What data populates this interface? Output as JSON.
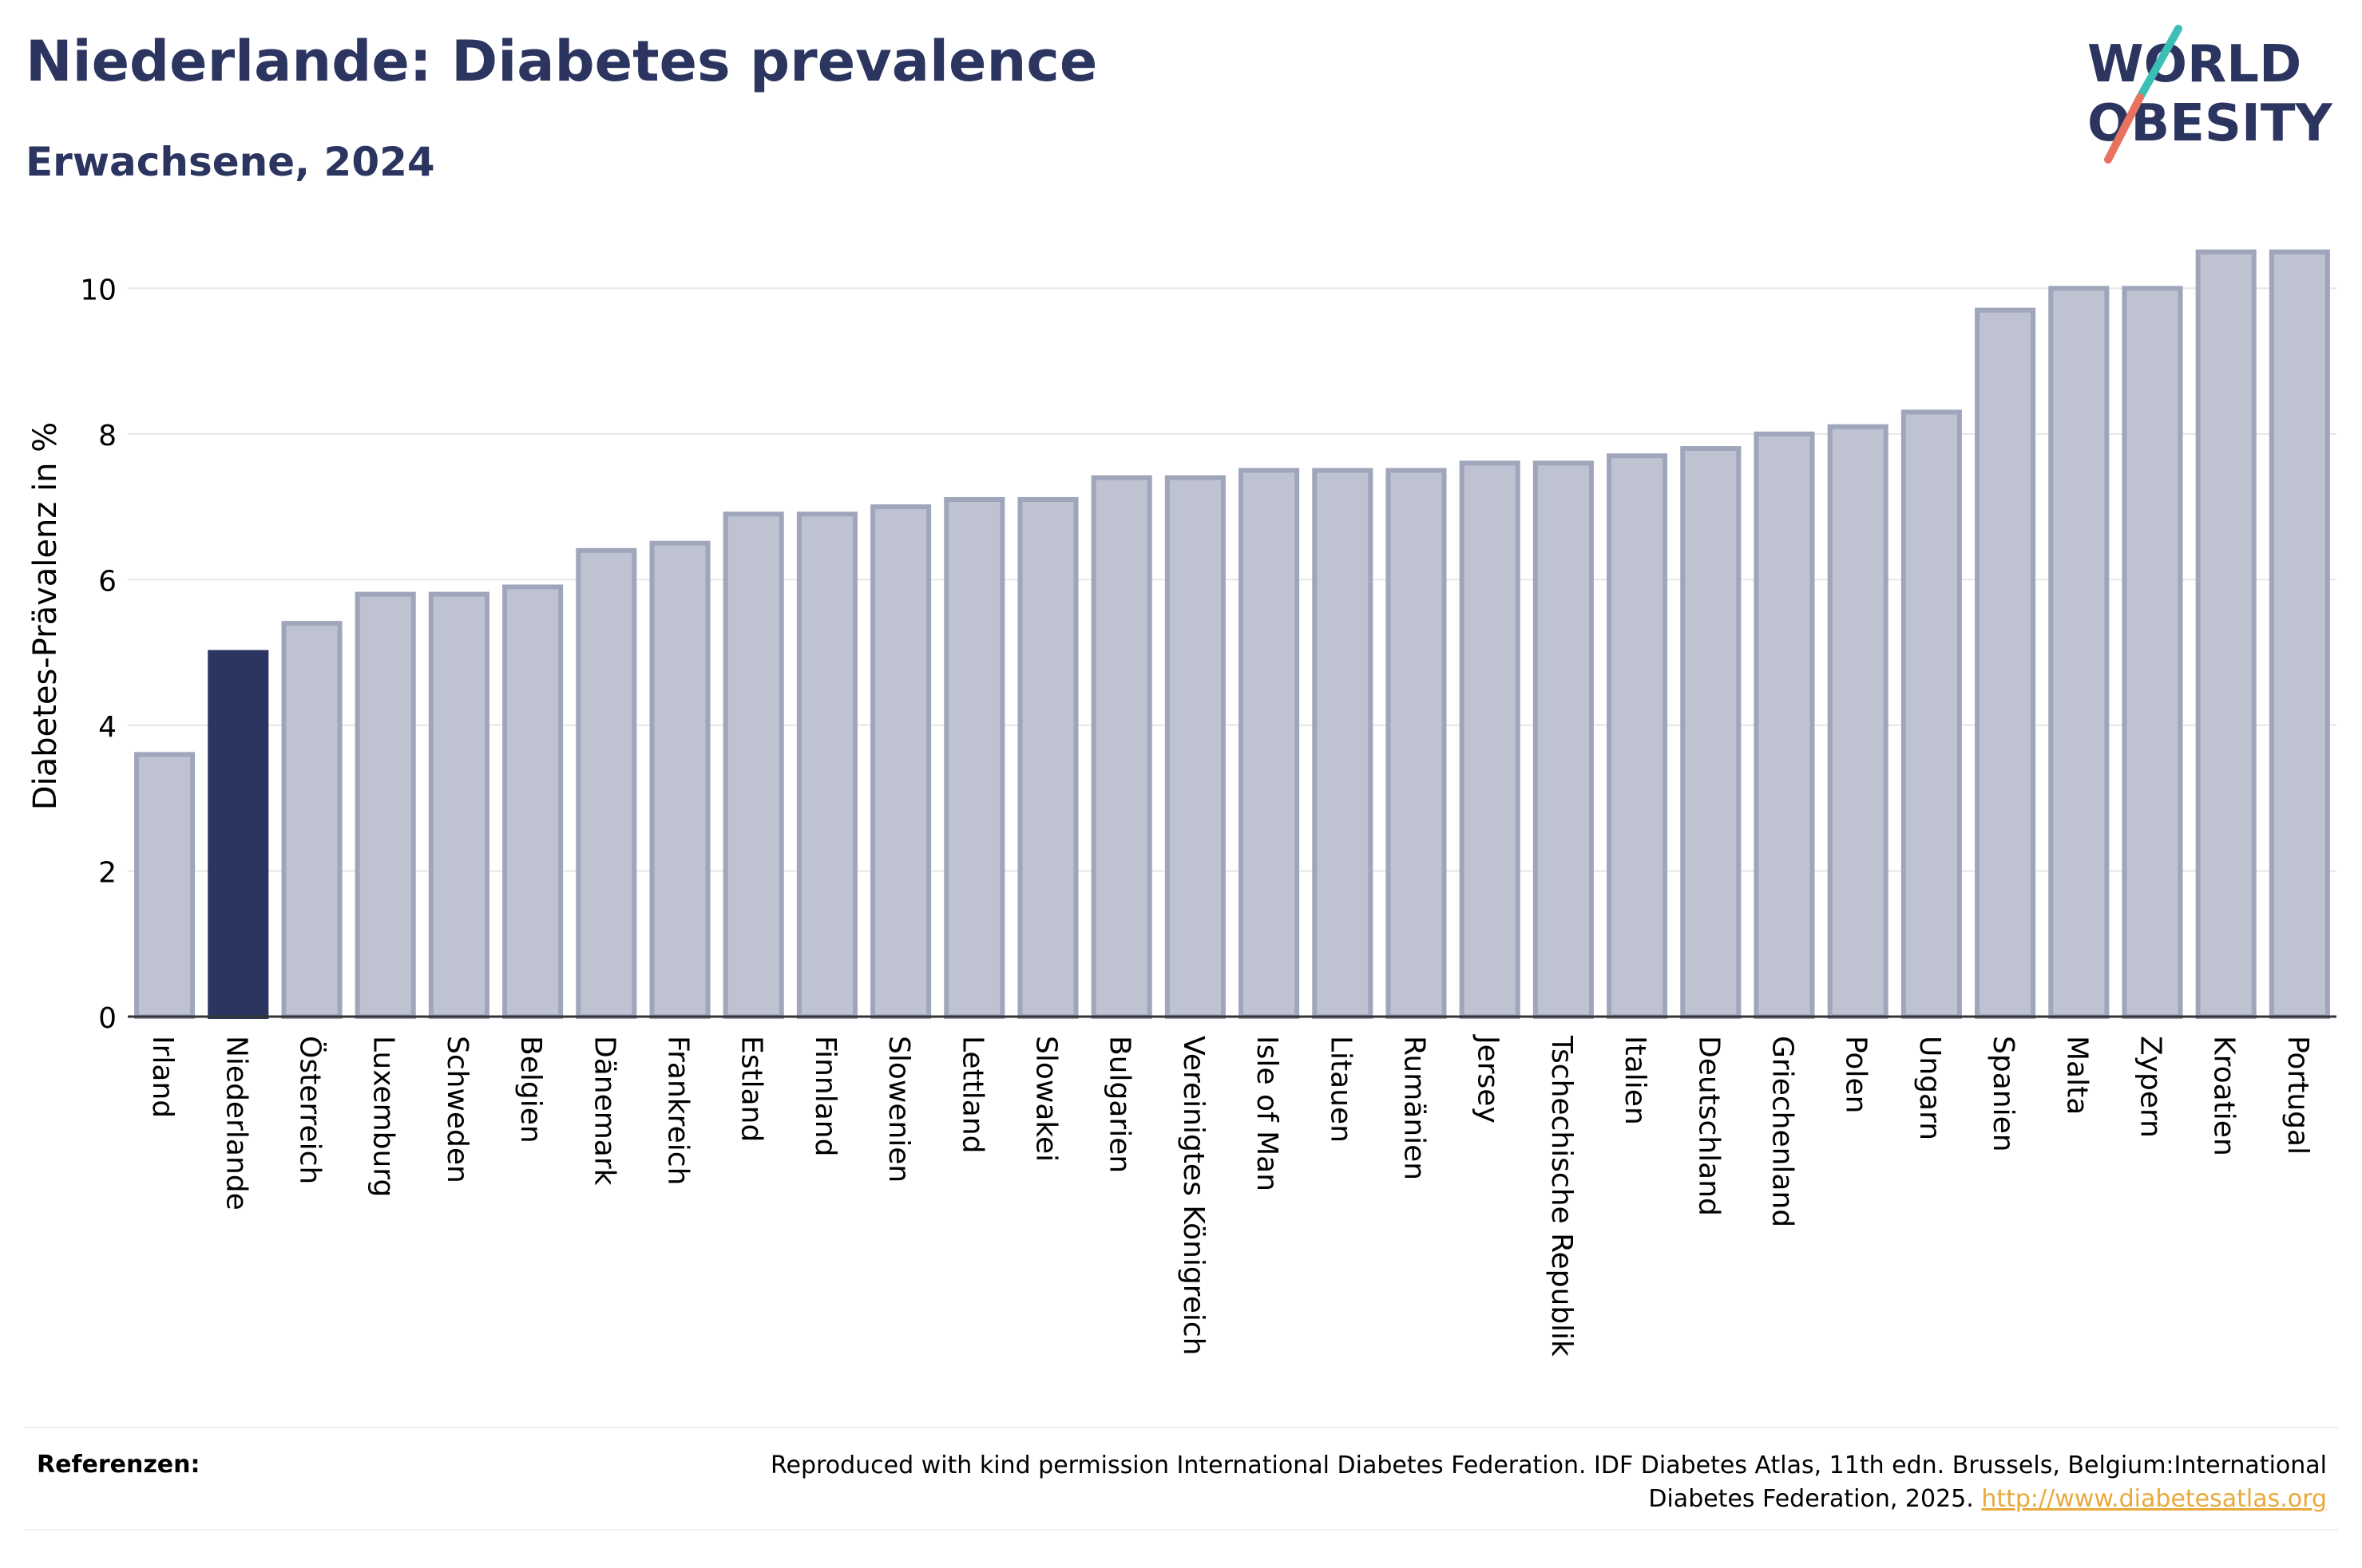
{
  "header": {
    "title": "Niederlande: Diabetes prevalence",
    "subtitle": "Erwachsene, 2024"
  },
  "logo": {
    "line1": "WORLD",
    "line2": "OBESITY",
    "colors": {
      "text": "#2b3560",
      "slash_teal": "#3bbfb5",
      "slash_coral": "#e8735f"
    }
  },
  "chart_data": {
    "type": "bar",
    "title": "Niederlande: Diabetes prevalence",
    "subtitle": "Erwachsene, 2024",
    "xlabel": "",
    "ylabel": "Diabetes-Prävalenz in %",
    "ylim": [
      0,
      11
    ],
    "yticks": [
      0,
      2,
      4,
      6,
      8,
      10
    ],
    "grid": true,
    "highlight": "Niederlande",
    "colors": {
      "highlight": "#2b3560",
      "bar_fill": "#bfc3d1",
      "bar_stroke": "#9fa5ba"
    },
    "categories": [
      "Irland",
      "Niederlande",
      "Österreich",
      "Luxemburg",
      "Schweden",
      "Belgien",
      "Dänemark",
      "Frankreich",
      "Estland",
      "Finnland",
      "Slowenien",
      "Lettland",
      "Slowakei",
      "Bulgarien",
      "Vereinigtes Königreich",
      "Isle of Man",
      "Litauen",
      "Rumänien",
      "Jersey",
      "Tschechische Republik",
      "Italien",
      "Deutschland",
      "Griechenland",
      "Polen",
      "Ungarn",
      "Spanien",
      "Malta",
      "Zypern",
      "Kroatien",
      "Portugal"
    ],
    "values": [
      3.6,
      5.0,
      5.4,
      5.8,
      5.8,
      5.9,
      6.4,
      6.5,
      6.9,
      6.9,
      7.0,
      7.1,
      7.1,
      7.4,
      7.4,
      7.5,
      7.5,
      7.5,
      7.6,
      7.6,
      7.7,
      7.8,
      8.0,
      8.1,
      8.3,
      9.7,
      10.0,
      10.0,
      10.5,
      10.5
    ]
  },
  "footer": {
    "ref_label": "Referenzen:",
    "ref_text": "Reproduced with kind permission International Diabetes Federation. IDF Diabetes Atlas, 11th edn. Brussels, Belgium:International Diabetes Federation, 2025.",
    "ref_link": "http://www.diabetesatlas.org"
  }
}
